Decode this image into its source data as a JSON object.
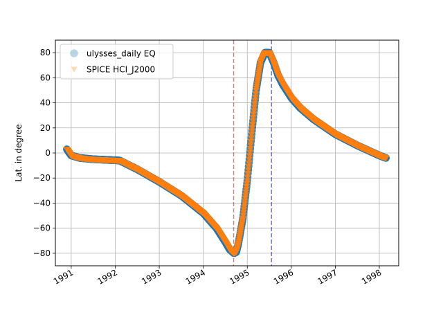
{
  "chart_data": {
    "type": "scatter",
    "title": "",
    "xlabel": "",
    "ylabel": "Lat. in degree",
    "xlim": [
      1990.64,
      1998.44
    ],
    "ylim": [
      -90,
      90
    ],
    "x_ticks": [
      1991,
      1992,
      1993,
      1994,
      1995,
      1996,
      1997,
      1998
    ],
    "x_tick_labels": [
      "1991",
      "1992",
      "1993",
      "1994",
      "1995",
      "1996",
      "1997",
      "1998"
    ],
    "y_ticks": [
      -80,
      -60,
      -40,
      -20,
      0,
      20,
      40,
      60,
      80
    ],
    "y_tick_labels": [
      "−80",
      "−60",
      "−40",
      "−20",
      "0",
      "20",
      "40",
      "60",
      "80"
    ],
    "grid": true,
    "legend": "top-left",
    "vlines": [
      {
        "x": 1994.69,
        "color": "#d62728"
      },
      {
        "x": 1995.55,
        "color": "#1f1fa0"
      }
    ],
    "series": [
      {
        "name": "ulysses_daily EQ",
        "marker": "circle",
        "color": "#1f77b4",
        "x": [
          1990.9,
          1991.0,
          1991.2,
          1991.5,
          1991.8,
          1992.1,
          1992.5,
          1993.0,
          1993.5,
          1994.0,
          1994.3,
          1994.5,
          1994.6,
          1994.7,
          1994.75,
          1994.8,
          1994.9,
          1995.0,
          1995.1,
          1995.2,
          1995.3,
          1995.4,
          1995.5,
          1995.6,
          1995.7,
          1995.8,
          1996.0,
          1996.2,
          1996.5,
          1997.0,
          1997.5,
          1998.0,
          1998.15
        ],
        "y": [
          3,
          -2,
          -4,
          -5,
          -5.5,
          -6,
          -13,
          -23,
          -34,
          -48,
          -60,
          -71,
          -77,
          -80,
          -79,
          -72,
          -52,
          -22,
          15,
          50,
          72,
          80,
          80,
          72,
          62,
          55,
          44,
          36,
          27,
          15,
          6,
          -2,
          -4
        ]
      },
      {
        "name": "SPICE HCI_J2000",
        "marker": "triangle-down",
        "color": "#ff7f0e",
        "x": [
          1990.9,
          1991.0,
          1991.2,
          1991.5,
          1991.8,
          1992.1,
          1992.5,
          1993.0,
          1993.5,
          1994.0,
          1994.3,
          1994.5,
          1994.6,
          1994.7,
          1994.75,
          1994.8,
          1994.9,
          1995.0,
          1995.1,
          1995.2,
          1995.3,
          1995.4,
          1995.5,
          1995.6,
          1995.7,
          1995.8,
          1996.0,
          1996.2,
          1996.5,
          1997.0,
          1997.5,
          1998.0,
          1998.15
        ],
        "y": [
          3,
          -2,
          -4,
          -5,
          -5.5,
          -6,
          -13,
          -23,
          -34,
          -48,
          -60,
          -71,
          -77,
          -80,
          -79,
          -72,
          -52,
          -22,
          15,
          50,
          72,
          80,
          80,
          72,
          62,
          55,
          44,
          36,
          27,
          15,
          6,
          -2,
          -4
        ]
      }
    ]
  }
}
